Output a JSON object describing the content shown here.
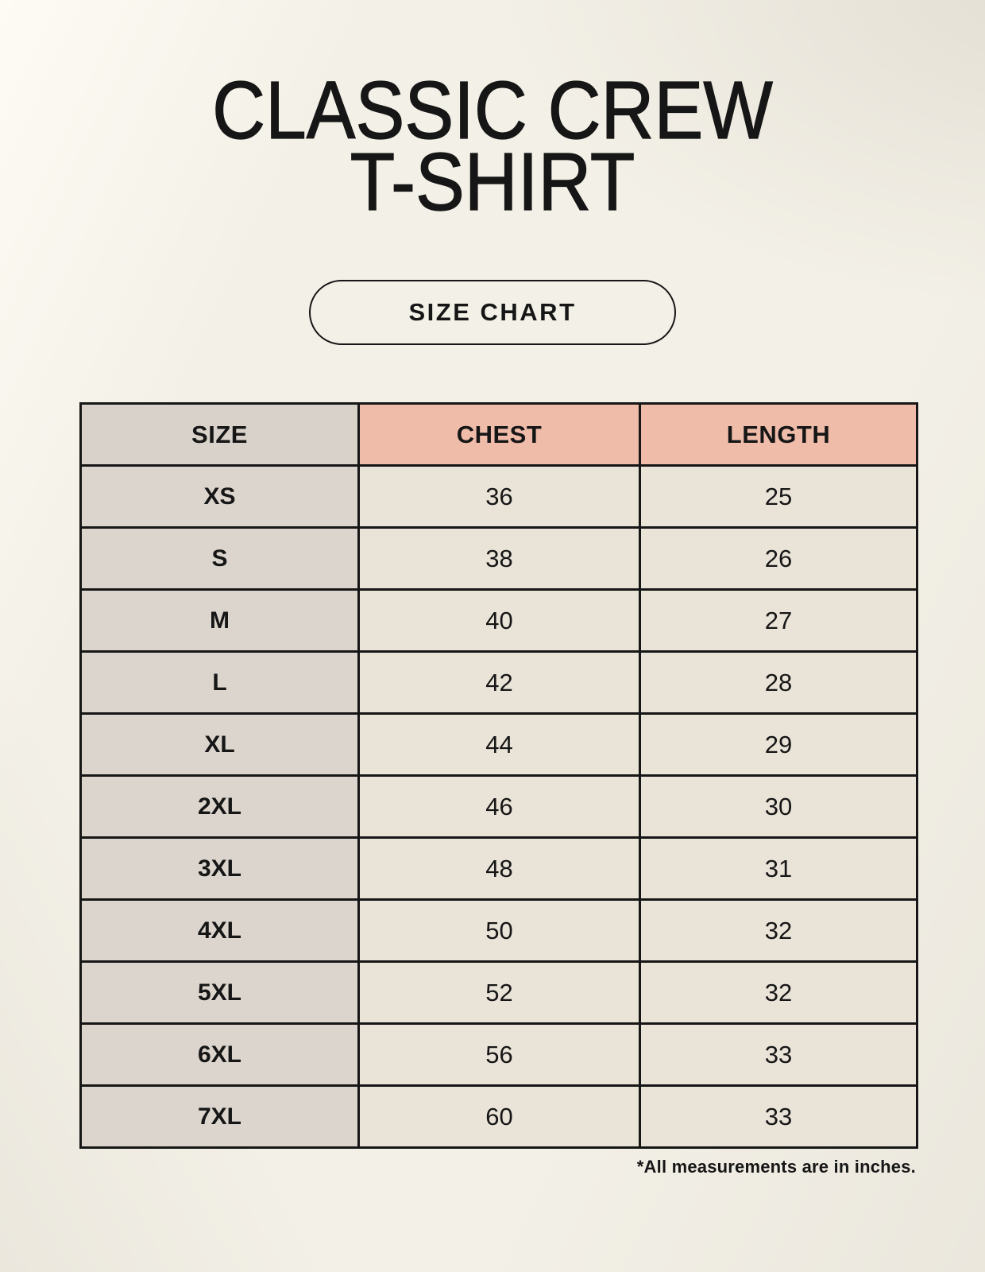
{
  "title": {
    "line1": "CLASSIC CREW",
    "line2": "T-SHIRT"
  },
  "button": {
    "label": "SIZE CHART"
  },
  "table": {
    "headers": [
      "SIZE",
      "CHEST",
      "LENGTH"
    ],
    "rows": [
      {
        "size": "XS",
        "chest": "36",
        "length": "25"
      },
      {
        "size": "S",
        "chest": "38",
        "length": "26"
      },
      {
        "size": "M",
        "chest": "40",
        "length": "27"
      },
      {
        "size": "L",
        "chest": "42",
        "length": "28"
      },
      {
        "size": "XL",
        "chest": "44",
        "length": "29"
      },
      {
        "size": "2XL",
        "chest": "46",
        "length": "30"
      },
      {
        "size": "3XL",
        "chest": "48",
        "length": "31"
      },
      {
        "size": "4XL",
        "chest": "50",
        "length": "32"
      },
      {
        "size": "5XL",
        "chest": "52",
        "length": "32"
      },
      {
        "size": "6XL",
        "chest": "56",
        "length": "33"
      },
      {
        "size": "7XL",
        "chest": "60",
        "length": "33"
      }
    ],
    "units_note": "*All measurements are in inches."
  },
  "colors": {
    "page_background": "#f3f0e7",
    "header_accent_pink": "#f0bcaa",
    "size_column_gray": "#dcd5ce",
    "value_cell_cream": "#eae3d8",
    "border_black": "#161616",
    "text_black": "#161616"
  }
}
